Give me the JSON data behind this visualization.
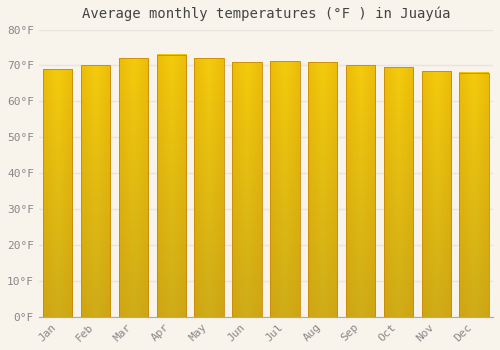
{
  "title": "Average monthly temperatures (°F ) in Juayúa",
  "months": [
    "Jan",
    "Feb",
    "Mar",
    "Apr",
    "May",
    "Jun",
    "Jul",
    "Aug",
    "Sep",
    "Oct",
    "Nov",
    "Dec"
  ],
  "values": [
    69.0,
    70.0,
    72.0,
    73.0,
    72.0,
    71.0,
    71.2,
    71.0,
    70.0,
    69.5,
    68.5,
    68.0
  ],
  "ylim": [
    0,
    80
  ],
  "yticks": [
    0,
    10,
    20,
    30,
    40,
    50,
    60,
    70,
    80
  ],
  "ytick_labels": [
    "0°F",
    "10°F",
    "20°F",
    "30°F",
    "40°F",
    "50°F",
    "60°F",
    "70°F",
    "80°F"
  ],
  "bar_color_center": "#FFD040",
  "bar_color_edge": "#F5A800",
  "bar_border_color": "#C8880A",
  "background_color": "#F8F4EC",
  "grid_color": "#E8E4DE",
  "title_fontsize": 10,
  "tick_fontsize": 8,
  "bar_width": 0.78
}
